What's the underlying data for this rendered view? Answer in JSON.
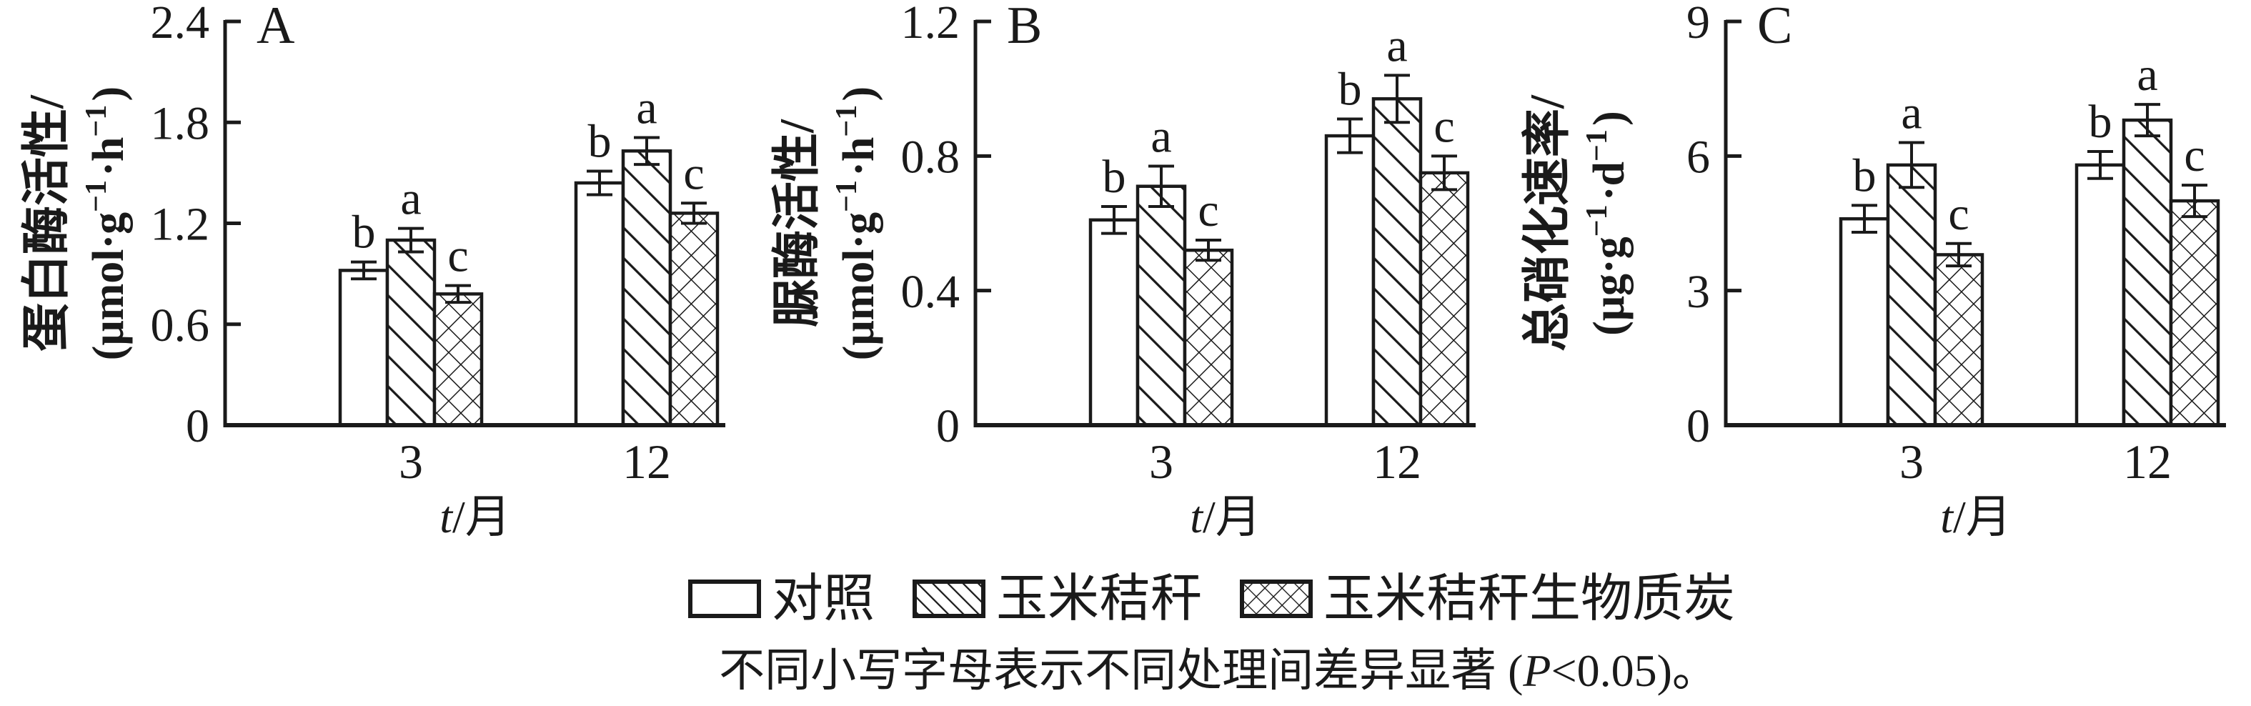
{
  "style": {
    "ink": "#1a1a1a",
    "paper": "#ffffff"
  },
  "chart_data": [
    {
      "type": "bar",
      "panel_letter": "A",
      "ylabel": "蛋白酶活性/",
      "ylabel_unit": "(μmol·g⁻¹·h⁻¹)",
      "xlabel": "t/月",
      "categories": [
        "3",
        "12"
      ],
      "ylim": [
        0,
        2.4
      ],
      "yticks": [
        0,
        0.6,
        1.2,
        1.8,
        2.4
      ],
      "grid": false,
      "series": [
        {
          "name": "对照",
          "pattern": "plain",
          "values": [
            0.92,
            1.44
          ],
          "errors": [
            0.05,
            0.07
          ],
          "letters": [
            "b",
            "b"
          ]
        },
        {
          "name": "玉米秸秆",
          "pattern": "hatch",
          "values": [
            1.1,
            1.63
          ],
          "errors": [
            0.07,
            0.08
          ],
          "letters": [
            "a",
            "a"
          ]
        },
        {
          "name": "玉米秸秆生物质炭",
          "pattern": "cross",
          "values": [
            0.78,
            1.26
          ],
          "errors": [
            0.05,
            0.06
          ],
          "letters": [
            "c",
            "c"
          ]
        }
      ]
    },
    {
      "type": "bar",
      "panel_letter": "B",
      "ylabel": "脲酶活性/",
      "ylabel_unit": "(μmol·g⁻¹·h⁻¹)",
      "xlabel": "t/月",
      "categories": [
        "3",
        "12"
      ],
      "ylim": [
        0,
        1.2
      ],
      "yticks": [
        0,
        0.4,
        0.8,
        1.2
      ],
      "grid": false,
      "series": [
        {
          "name": "对照",
          "pattern": "plain",
          "values": [
            0.61,
            0.86
          ],
          "errors": [
            0.04,
            0.05
          ],
          "letters": [
            "b",
            "b"
          ]
        },
        {
          "name": "玉米秸秆",
          "pattern": "hatch",
          "values": [
            0.71,
            0.97
          ],
          "errors": [
            0.06,
            0.07
          ],
          "letters": [
            "a",
            "a"
          ]
        },
        {
          "name": "玉米秸秆生物质炭",
          "pattern": "cross",
          "values": [
            0.52,
            0.75
          ],
          "errors": [
            0.03,
            0.05
          ],
          "letters": [
            "c",
            "c"
          ]
        }
      ]
    },
    {
      "type": "bar",
      "panel_letter": "C",
      "ylabel": "总硝化速率/",
      "ylabel_unit": "(μg·g⁻¹·d⁻¹)",
      "xlabel": "t/月",
      "categories": [
        "3",
        "12"
      ],
      "ylim": [
        0,
        9
      ],
      "yticks": [
        0,
        3,
        6,
        9
      ],
      "grid": false,
      "series": [
        {
          "name": "对照",
          "pattern": "plain",
          "values": [
            4.6,
            5.8
          ],
          "errors": [
            0.3,
            0.3
          ],
          "letters": [
            "b",
            "b"
          ]
        },
        {
          "name": "玉米秸秆",
          "pattern": "hatch",
          "values": [
            5.8,
            6.8
          ],
          "errors": [
            0.5,
            0.35
          ],
          "letters": [
            "a",
            "a"
          ]
        },
        {
          "name": "玉米秸秆生物质炭",
          "pattern": "cross",
          "values": [
            3.8,
            5.0
          ],
          "errors": [
            0.25,
            0.35
          ],
          "letters": [
            "c",
            "c"
          ]
        }
      ]
    }
  ],
  "legend": {
    "items": [
      {
        "label": "对照",
        "pattern": "plain"
      },
      {
        "label": "玉米秸秆",
        "pattern": "hatch"
      },
      {
        "label": "玉米秸秆生物质炭",
        "pattern": "cross"
      }
    ]
  },
  "caption": {
    "prefix": "不同小写字母表示不同处理间差异显著 (",
    "italic": "P",
    "suffix": "<0.05)。"
  }
}
